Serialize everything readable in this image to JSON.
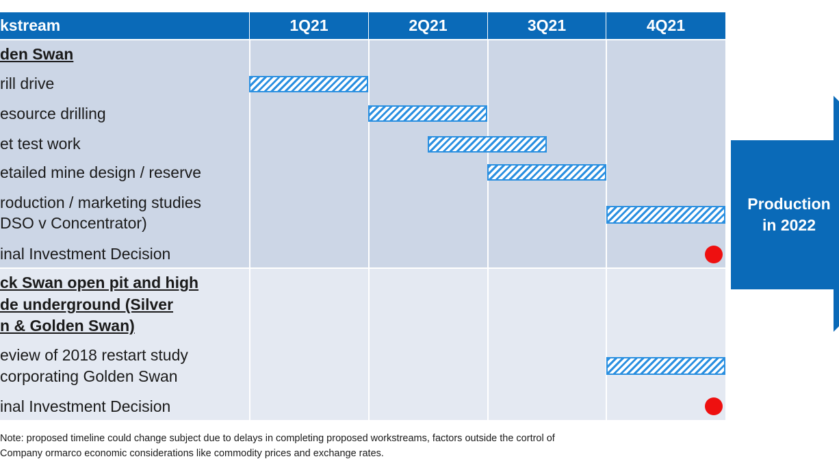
{
  "header": {
    "workstream_label": "kstream",
    "quarters": [
      "1Q21",
      "2Q21",
      "3Q21",
      "4Q21"
    ]
  },
  "sections": [
    {
      "title_lines": [
        "den Swan"
      ],
      "tasks": [
        {
          "label_lines": [
            "rill drive"
          ],
          "start_quarter": 1.0,
          "end_quarter": 2.0
        },
        {
          "label_lines": [
            "esource drilling"
          ],
          "start_quarter": 2.0,
          "end_quarter": 3.0
        },
        {
          "label_lines": [
            "et test work"
          ],
          "start_quarter": 2.5,
          "end_quarter": 3.5
        },
        {
          "label_lines": [
            "etailed mine design / reserve"
          ],
          "start_quarter": 3.0,
          "end_quarter": 4.0
        },
        {
          "label_lines": [
            "roduction / marketing studies",
            "DSO v Concentrator)"
          ],
          "start_quarter": 4.0,
          "end_quarter": 5.0
        },
        {
          "label_lines": [
            "inal Investment Decision"
          ],
          "milestone_quarter": 4.9
        }
      ]
    },
    {
      "title_lines": [
        "ck Swan open pit and  high",
        "de underground (Silver",
        "n & Golden Swan)"
      ],
      "tasks": [
        {
          "label_lines": [
            "eview of 2018 restart study",
            "corporating Golden Swan"
          ],
          "start_quarter": 4.0,
          "end_quarter": 5.0
        },
        {
          "label_lines": [
            "inal Investment Decision"
          ],
          "milestone_quarter": 4.9
        }
      ]
    }
  ],
  "arrow": {
    "lines": [
      "Production",
      "in 2022"
    ],
    "color": "#0a6ab8"
  },
  "note": {
    "line1": "Note: proposed timeline could change subject due to delays in completing proposed workstreams, factors outside the cortrol of",
    "line2": "Company ormarco economic considerations like commodity prices and exchange rates."
  },
  "colors": {
    "header": "#0a6ab8",
    "band1": "#ccd6e6",
    "band2": "#e4e9f2",
    "bar": "#2a8fe0",
    "milestone": "#ee1010"
  }
}
